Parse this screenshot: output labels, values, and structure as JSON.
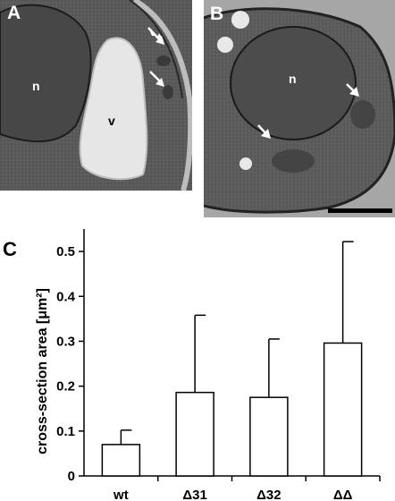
{
  "panels": {
    "a": {
      "letter": "A",
      "labels": {
        "nucleus": "n",
        "vacuole": "v"
      }
    },
    "b": {
      "letter": "B",
      "labels": {
        "nucleus": "n"
      }
    },
    "c": {
      "letter": "C"
    }
  },
  "chart_data": {
    "type": "bar",
    "categories": [
      "wt",
      "Δ31",
      "Δ32",
      "ΔΔ"
    ],
    "values": [
      0.07,
      0.186,
      0.175,
      0.296
    ],
    "error_upper": [
      0.102,
      0.358,
      0.305,
      0.522
    ],
    "ylabel": "cross-section area [μm²]",
    "ylim": [
      0,
      0.55
    ],
    "yticks": [
      "0",
      "0.1",
      "0.2",
      "0.3",
      "0.4",
      "0.5"
    ],
    "ytick_values": [
      0,
      0.1,
      0.2,
      0.3,
      0.4,
      0.5
    ],
    "grid": false,
    "bar_fill": "#ffffff",
    "bar_stroke": "#000000"
  }
}
